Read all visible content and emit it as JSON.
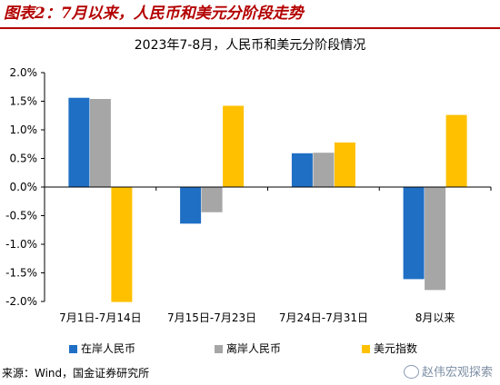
{
  "header": {
    "title": "图表2：7月以来，人民币和美元分阶段走势"
  },
  "chart_data": {
    "type": "bar",
    "title": "2023年7-8月，人民币和美元分阶段情况",
    "categories": [
      "7月1日-7月14日",
      "7月15日-7月23日",
      "7月24日-7月31日",
      "8月以来"
    ],
    "series": [
      {
        "name": "在岸人民币",
        "color": "#1f6fc4",
        "values": [
          1.56,
          -0.64,
          0.59,
          -1.61
        ]
      },
      {
        "name": "离岸人民币",
        "color": "#a6a6a6",
        "values": [
          1.54,
          -0.44,
          0.6,
          -1.8
        ]
      },
      {
        "name": "美元指数",
        "color": "#ffc000",
        "values": [
          -2.01,
          1.42,
          0.78,
          1.26
        ]
      }
    ],
    "ylim": [
      -2.0,
      2.0
    ],
    "yticks": [
      "2.0%",
      "1.5%",
      "1.0%",
      "0.5%",
      "0.0%",
      "-0.5%",
      "-1.0%",
      "-1.5%",
      "-2.0%"
    ],
    "ytick_values": [
      2.0,
      1.5,
      1.0,
      0.5,
      0.0,
      -0.5,
      -1.0,
      -1.5,
      -2.0
    ],
    "legend_position": "bottom",
    "grid": false
  },
  "footer": {
    "source": "来源：Wind，国金证券研究所",
    "watermark": "赵伟宏观探索"
  }
}
